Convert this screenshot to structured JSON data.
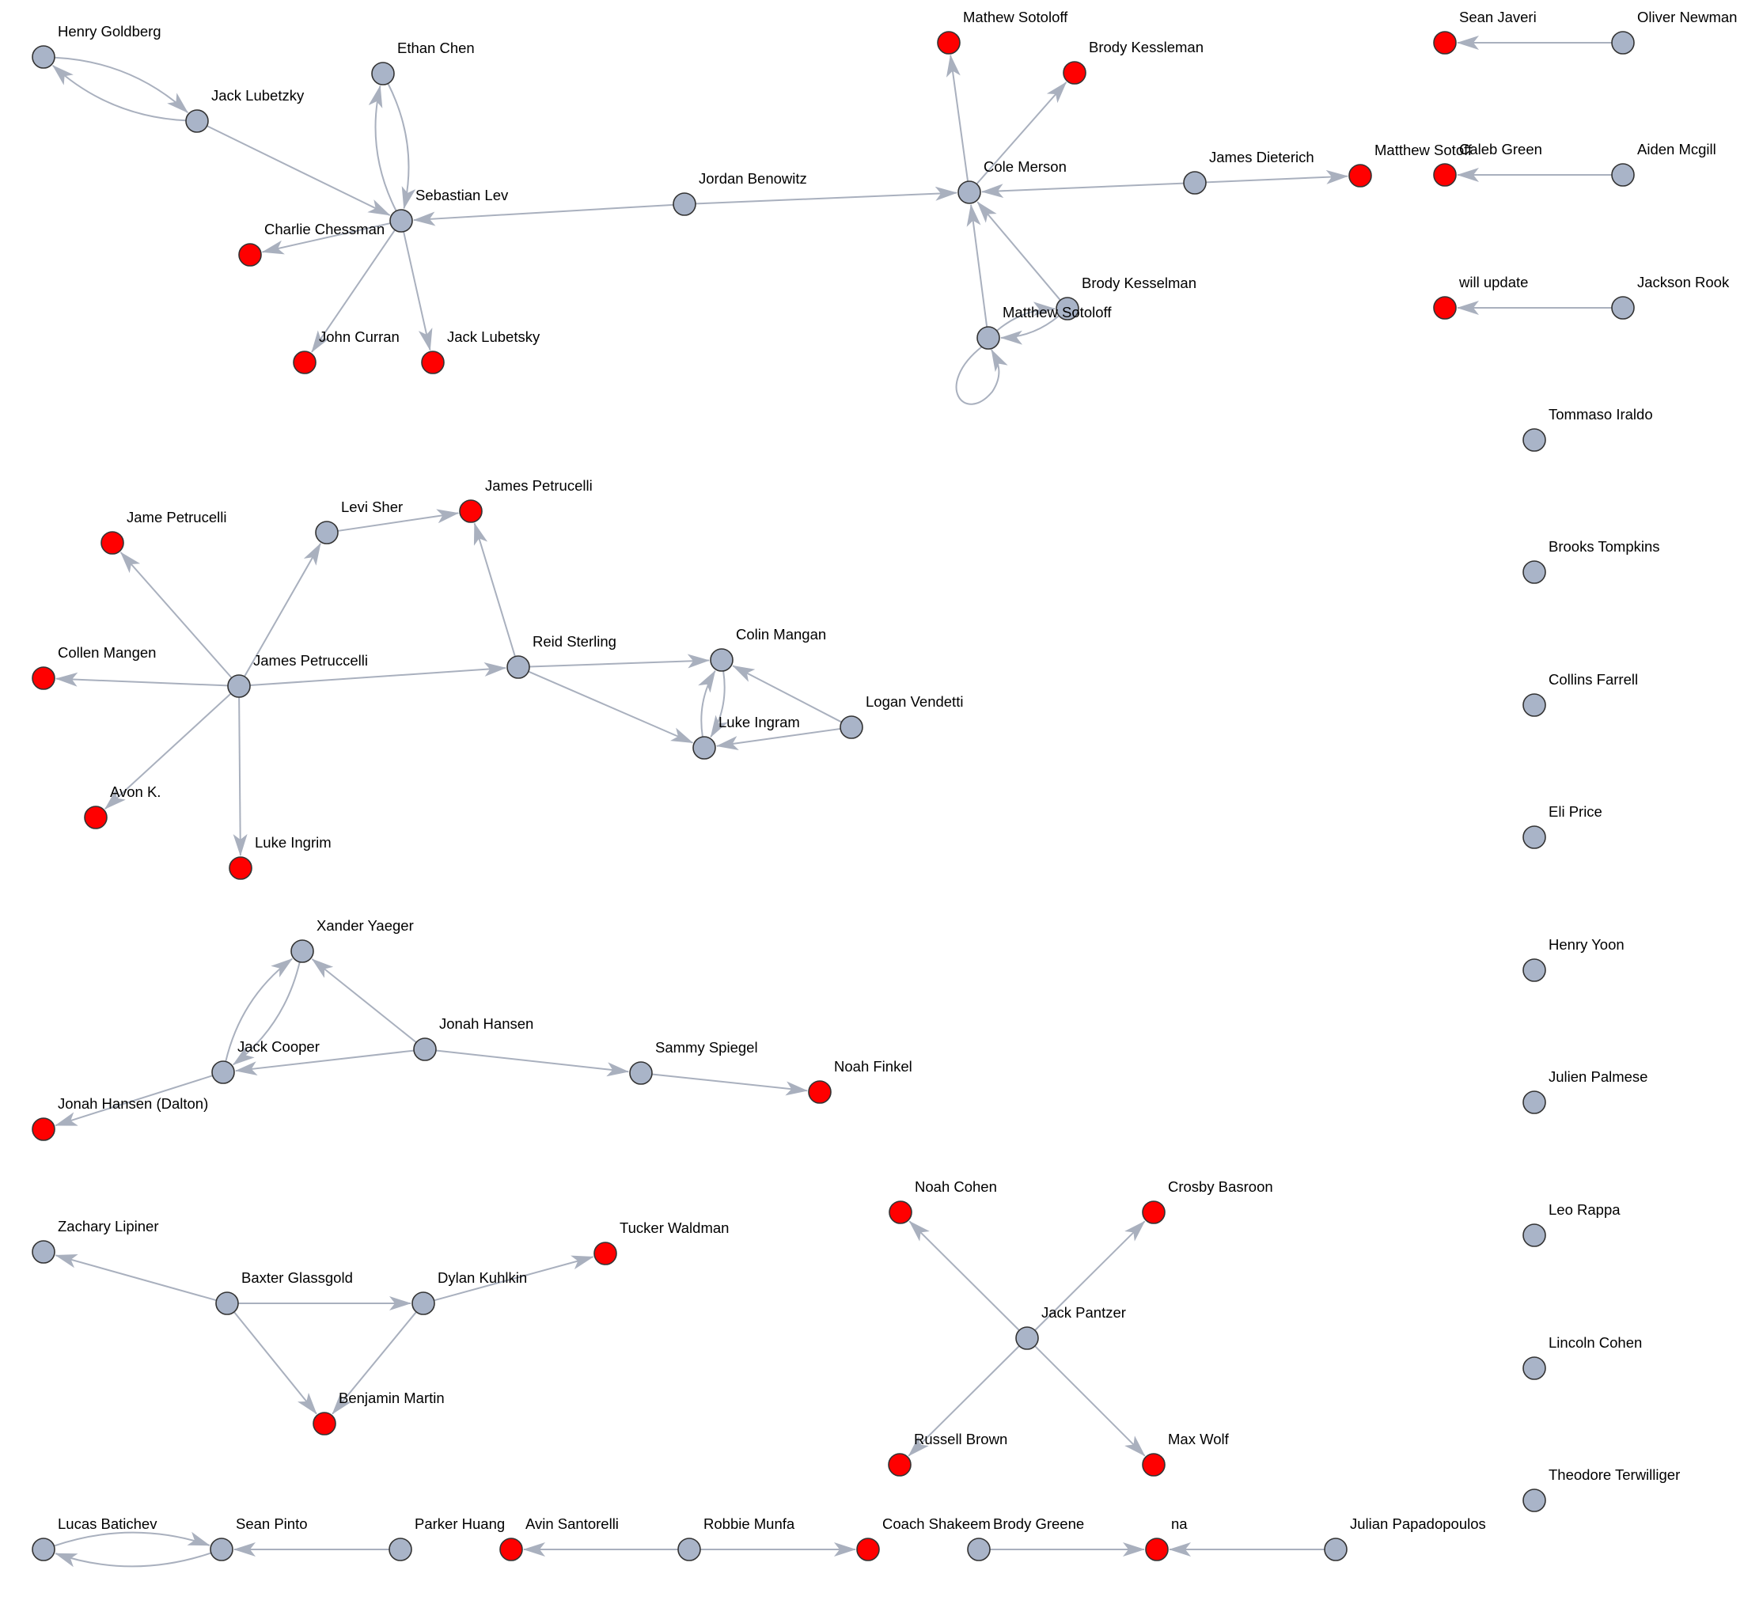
{
  "colors": {
    "edge": "#a9b0be",
    "node_default": "#a9b4c8",
    "node_highlight": "#ff0000",
    "node_stroke": "#333333"
  },
  "nodes": [
    {
      "id": "henry-goldberg",
      "label": "Henry Goldberg",
      "type": "default"
    },
    {
      "id": "jack-lubetzky",
      "label": "Jack Lubetzky",
      "type": "default"
    },
    {
      "id": "ethan-chen",
      "label": "Ethan Chen",
      "type": "default"
    },
    {
      "id": "sebastian-lev",
      "label": "Sebastian Lev",
      "type": "default"
    },
    {
      "id": "charlie-chessman",
      "label": "Charlie Chessman",
      "type": "highlight"
    },
    {
      "id": "john-curran",
      "label": "John Curran",
      "type": "highlight"
    },
    {
      "id": "jack-lubetsky",
      "label": "Jack Lubetsky",
      "type": "highlight"
    },
    {
      "id": "jordan-benowitz",
      "label": "Jordan Benowitz",
      "type": "default"
    },
    {
      "id": "mathew-sotoloff",
      "label": "Mathew Sotoloff",
      "type": "highlight"
    },
    {
      "id": "brody-kessleman",
      "label": "Brody Kessleman",
      "type": "highlight"
    },
    {
      "id": "cole-merson",
      "label": "Cole Merson",
      "type": "default"
    },
    {
      "id": "james-dieterich",
      "label": "James Dieterich",
      "type": "default"
    },
    {
      "id": "matthew-sotoloff-red",
      "label": "Matthew Sotoff",
      "type": "highlight"
    },
    {
      "id": "brody-kesselman",
      "label": "Brody Kesselman",
      "type": "default"
    },
    {
      "id": "matthew-sotoloff",
      "label": "Matthew Sotoloff",
      "type": "default"
    },
    {
      "id": "sean-javeri",
      "label": "Sean Javeri",
      "type": "highlight"
    },
    {
      "id": "oliver-newman",
      "label": "Oliver Newman",
      "type": "default"
    },
    {
      "id": "caleb-green",
      "label": "Caleb Green",
      "type": "highlight"
    },
    {
      "id": "aiden-mcgill",
      "label": "Aiden Mcgill",
      "type": "default"
    },
    {
      "id": "will-update",
      "label": "will update",
      "type": "highlight"
    },
    {
      "id": "jackson-rook",
      "label": "Jackson Rook",
      "type": "default"
    },
    {
      "id": "tommaso-iraldo",
      "label": "Tommaso Iraldo",
      "type": "default"
    },
    {
      "id": "brooks-tompkins",
      "label": "Brooks Tompkins",
      "type": "default"
    },
    {
      "id": "collins-farrell",
      "label": "Collins Farrell",
      "type": "default"
    },
    {
      "id": "eli-price",
      "label": "Eli Price",
      "type": "default"
    },
    {
      "id": "henry-yoon",
      "label": "Henry Yoon",
      "type": "default"
    },
    {
      "id": "julien-palmese",
      "label": "Julien Palmese",
      "type": "default"
    },
    {
      "id": "leo-rappa",
      "label": "Leo Rappa",
      "type": "default"
    },
    {
      "id": "lincoln-cohen",
      "label": "Lincoln Cohen",
      "type": "default"
    },
    {
      "id": "theodore-terwilliger",
      "label": "Theodore Terwilliger",
      "type": "default"
    },
    {
      "id": "jame-petrucelli",
      "label": "Jame Petrucelli",
      "type": "highlight"
    },
    {
      "id": "levi-sher",
      "label": "Levi Sher",
      "type": "default"
    },
    {
      "id": "james-petrucelli",
      "label": "James Petrucelli",
      "type": "highlight"
    },
    {
      "id": "collen-mangen",
      "label": "Collen Mangen",
      "type": "highlight"
    },
    {
      "id": "james-petruccelli",
      "label": "James Petruccelli",
      "type": "default"
    },
    {
      "id": "reid-sterling",
      "label": "Reid Sterling",
      "type": "default"
    },
    {
      "id": "colin-mangan",
      "label": "Colin Mangan",
      "type": "default"
    },
    {
      "id": "logan-vendetti",
      "label": "Logan Vendetti",
      "type": "default"
    },
    {
      "id": "luke-ingram",
      "label": "Luke Ingram",
      "type": "default"
    },
    {
      "id": "avon-k",
      "label": "Avon K.",
      "type": "highlight"
    },
    {
      "id": "luke-ingrim",
      "label": "Luke Ingrim",
      "type": "highlight"
    },
    {
      "id": "xander-yaeger",
      "label": "Xander Yaeger",
      "type": "default"
    },
    {
      "id": "jonah-hansen",
      "label": "Jonah Hansen",
      "type": "default"
    },
    {
      "id": "jack-cooper",
      "label": "Jack Cooper",
      "type": "default"
    },
    {
      "id": "sammy-spiegel",
      "label": "Sammy Spiegel",
      "type": "default"
    },
    {
      "id": "noah-finkel",
      "label": "Noah Finkel",
      "type": "highlight"
    },
    {
      "id": "jonah-hansen-dalton",
      "label": "Jonah Hansen (Dalton)",
      "type": "highlight"
    },
    {
      "id": "zachary-lipiner",
      "label": "Zachary Lipiner",
      "type": "default"
    },
    {
      "id": "baxter-glassgold",
      "label": "Baxter Glassgold",
      "type": "default"
    },
    {
      "id": "dylan-kuhlkin",
      "label": "Dylan Kuhlkin",
      "type": "default"
    },
    {
      "id": "tucker-waldman",
      "label": "Tucker Waldman",
      "type": "highlight"
    },
    {
      "id": "benjamin-martin",
      "label": "Benjamin Martin",
      "type": "highlight"
    },
    {
      "id": "noah-cohen",
      "label": "Noah Cohen",
      "type": "highlight"
    },
    {
      "id": "crosby-basroon",
      "label": "Crosby Basroon",
      "type": "highlight"
    },
    {
      "id": "jack-pantzer",
      "label": "Jack Pantzer",
      "type": "default"
    },
    {
      "id": "russell-brown",
      "label": "Russell Brown",
      "type": "highlight"
    },
    {
      "id": "max-wolf",
      "label": "Max Wolf",
      "type": "highlight"
    },
    {
      "id": "lucas-batichev",
      "label": "Lucas Batichev",
      "type": "default"
    },
    {
      "id": "sean-pinto",
      "label": "Sean Pinto",
      "type": "default"
    },
    {
      "id": "parker-huang",
      "label": "Parker Huang",
      "type": "default"
    },
    {
      "id": "avin-santorelli",
      "label": "Avin Santorelli",
      "type": "highlight"
    },
    {
      "id": "robbie-munfa",
      "label": "Robbie Munfa",
      "type": "default"
    },
    {
      "id": "coach-shakeem",
      "label": "Coach Shakeem",
      "type": "highlight"
    },
    {
      "id": "brody-greene",
      "label": "Brody Greene",
      "type": "default"
    },
    {
      "id": "na",
      "label": "na",
      "type": "highlight"
    },
    {
      "id": "julian-papadopoulos",
      "label": "Julian Papadopoulos",
      "type": "default"
    }
  ],
  "edges": [
    {
      "from": "henry-goldberg",
      "to": "jack-lubetzky"
    },
    {
      "from": "jack-lubetzky",
      "to": "henry-goldberg"
    },
    {
      "from": "jack-lubetzky",
      "to": "sebastian-lev"
    },
    {
      "from": "sebastian-lev",
      "to": "ethan-chen"
    },
    {
      "from": "ethan-chen",
      "to": "sebastian-lev"
    },
    {
      "from": "sebastian-lev",
      "to": "charlie-chessman"
    },
    {
      "from": "sebastian-lev",
      "to": "john-curran"
    },
    {
      "from": "sebastian-lev",
      "to": "jack-lubetsky"
    },
    {
      "from": "jordan-benowitz",
      "to": "sebastian-lev"
    },
    {
      "from": "jordan-benowitz",
      "to": "cole-merson"
    },
    {
      "from": "cole-merson",
      "to": "mathew-sotoloff"
    },
    {
      "from": "cole-merson",
      "to": "brody-kessleman"
    },
    {
      "from": "james-dieterich",
      "to": "cole-merson"
    },
    {
      "from": "james-dieterich",
      "to": "matthew-sotoloff-red"
    },
    {
      "from": "brody-kesselman",
      "to": "cole-merson"
    },
    {
      "from": "matthew-sotoloff",
      "to": "cole-merson"
    },
    {
      "from": "matthew-sotoloff",
      "to": "brody-kesselman"
    },
    {
      "from": "brody-kesselman",
      "to": "matthew-sotoloff"
    },
    {
      "from": "matthew-sotoloff",
      "to": "matthew-sotoloff"
    },
    {
      "from": "oliver-newman",
      "to": "sean-javeri"
    },
    {
      "from": "aiden-mcgill",
      "to": "caleb-green"
    },
    {
      "from": "jackson-rook",
      "to": "will-update"
    },
    {
      "from": "james-petruccelli",
      "to": "jame-petrucelli"
    },
    {
      "from": "james-petruccelli",
      "to": "levi-sher"
    },
    {
      "from": "levi-sher",
      "to": "james-petrucelli"
    },
    {
      "from": "reid-sterling",
      "to": "james-petrucelli"
    },
    {
      "from": "james-petruccelli",
      "to": "collen-mangen"
    },
    {
      "from": "james-petruccelli",
      "to": "reid-sterling"
    },
    {
      "from": "james-petruccelli",
      "to": "avon-k"
    },
    {
      "from": "james-petruccelli",
      "to": "luke-ingrim"
    },
    {
      "from": "reid-sterling",
      "to": "colin-mangan"
    },
    {
      "from": "reid-sterling",
      "to": "luke-ingram"
    },
    {
      "from": "luke-ingram",
      "to": "colin-mangan"
    },
    {
      "from": "colin-mangan",
      "to": "luke-ingram"
    },
    {
      "from": "logan-vendetti",
      "to": "colin-mangan"
    },
    {
      "from": "logan-vendetti",
      "to": "luke-ingram"
    },
    {
      "from": "jonah-hansen",
      "to": "xander-yaeger"
    },
    {
      "from": "jack-cooper",
      "to": "xander-yaeger"
    },
    {
      "from": "xander-yaeger",
      "to": "jack-cooper"
    },
    {
      "from": "jonah-hansen",
      "to": "jack-cooper"
    },
    {
      "from": "jonah-hansen",
      "to": "sammy-spiegel"
    },
    {
      "from": "sammy-spiegel",
      "to": "noah-finkel"
    },
    {
      "from": "jack-cooper",
      "to": "jonah-hansen-dalton"
    },
    {
      "from": "baxter-glassgold",
      "to": "zachary-lipiner"
    },
    {
      "from": "baxter-glassgold",
      "to": "dylan-kuhlkin"
    },
    {
      "from": "dylan-kuhlkin",
      "to": "tucker-waldman"
    },
    {
      "from": "baxter-glassgold",
      "to": "benjamin-martin"
    },
    {
      "from": "dylan-kuhlkin",
      "to": "benjamin-martin"
    },
    {
      "from": "jack-pantzer",
      "to": "noah-cohen"
    },
    {
      "from": "jack-pantzer",
      "to": "crosby-basroon"
    },
    {
      "from": "jack-pantzer",
      "to": "russell-brown"
    },
    {
      "from": "jack-pantzer",
      "to": "max-wolf"
    },
    {
      "from": "lucas-batichev",
      "to": "sean-pinto"
    },
    {
      "from": "sean-pinto",
      "to": "lucas-batichev"
    },
    {
      "from": "parker-huang",
      "to": "sean-pinto"
    },
    {
      "from": "robbie-munfa",
      "to": "avin-santorelli"
    },
    {
      "from": "robbie-munfa",
      "to": "coach-shakeem"
    },
    {
      "from": "brody-greene",
      "to": "na"
    },
    {
      "from": "julian-papadopoulos",
      "to": "na"
    }
  ]
}
